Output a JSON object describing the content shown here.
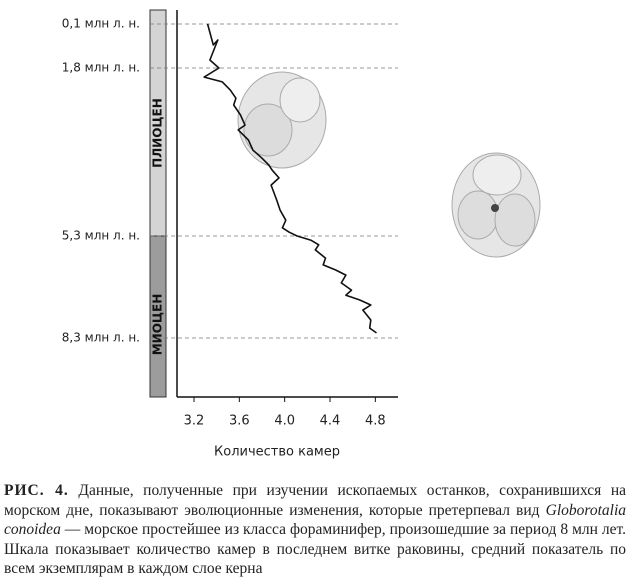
{
  "chart_data": {
    "type": "line",
    "x_label": "Количество камер",
    "epochs": [
      {
        "name": "ПЛИОЦЕН",
        "color": "#d4d4d4"
      },
      {
        "name": "МИОЦЕН",
        "color": "#9c9c9c"
      }
    ],
    "x": [
      3.32,
      3.37,
      3.41,
      3.34,
      3.42,
      3.29,
      3.45,
      3.52,
      3.57,
      3.55,
      3.61,
      3.65,
      3.59,
      3.68,
      3.72,
      3.8,
      3.86,
      3.89,
      3.95,
      3.88,
      3.93,
      3.96,
      4.01,
      3.98,
      4.04,
      4.11,
      4.23,
      4.3,
      4.27,
      4.36,
      4.34,
      4.45,
      4.54,
      4.5,
      4.59,
      4.54,
      4.66,
      4.76,
      4.69,
      4.76,
      4.75,
      4.81
    ],
    "values": [
      0.1,
      0.91,
      0.72,
      1.49,
      1.8,
      1.99,
      2.09,
      2.26,
      2.43,
      2.57,
      2.78,
      2.99,
      3.09,
      3.3,
      3.51,
      3.68,
      3.82,
      3.93,
      4.09,
      4.24,
      4.55,
      4.76,
      4.97,
      5.13,
      5.22,
      5.3,
      5.42,
      5.56,
      5.71,
      5.95,
      6.15,
      6.3,
      6.45,
      6.68,
      6.89,
      7.04,
      7.18,
      7.33,
      7.48,
      7.77,
      8.01,
      8.15
    ],
    "color": "#111111",
    "xlim": [
      3.05,
      5.0
    ],
    "xticks": [
      3.2,
      3.6,
      {
        "value": 4,
        "label": "4.0"
      },
      4.4,
      4.8
    ],
    "ylim": [
      0,
      10
    ],
    "yticks": [
      {
        "value": 0.1,
        "label": "0,1 млн л. н."
      },
      {
        "value": 1.8,
        "label": "1,8 млн л. н."
      },
      {
        "value": 5.3,
        "label": "5,3 млн л. н."
      },
      {
        "value": 8.3,
        "label": "8,3 млн л. н."
      }
    ]
  },
  "caption": {
    "label": "РИС. 4.",
    "text": "Данные, полученные при изучении ископаемых останков, сохранившихся на морском дне, показывают эволюционные изменения, которые претерпевал вид",
    "species": "Globorotalia conoidea",
    "text_after": "— морское простейшее из класса фораминифер, произошедшие за период 8 млн лет. Шкала показывает количество камер в последнем витке раковины, средний показатель по всем экземплярам в каждом слое керна"
  }
}
